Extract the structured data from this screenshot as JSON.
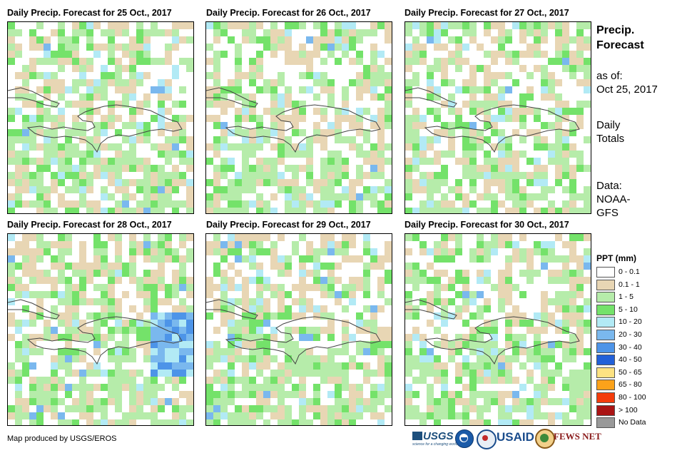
{
  "panels": [
    {
      "title": "Daily Precip. Forecast for 25 Oct., 2017",
      "seed": 11
    },
    {
      "title": "Daily Precip. Forecast for 26 Oct., 2017",
      "seed": 23
    },
    {
      "title": "Daily Precip. Forecast for 27 Oct., 2017",
      "seed": 37
    },
    {
      "title": "Daily Precip. Forecast for 28 Oct., 2017",
      "seed": 41
    },
    {
      "title": "Daily Precip. Forecast for 29 Oct., 2017",
      "seed": 53
    },
    {
      "title": "Daily Precip. Forecast for 30 Oct., 2017",
      "seed": 67
    }
  ],
  "sidebar": {
    "title_line1": "Precip.",
    "title_line2": "Forecast",
    "asof_label": "as of:",
    "asof_date": "Oct 25, 2017",
    "totals_line1": "Daily",
    "totals_line2": "Totals",
    "data_line1": "Data:",
    "data_line2": "NOAA-",
    "data_line3": "GFS"
  },
  "legend": {
    "title": "PPT (mm)",
    "items": [
      {
        "label": "0 - 0.1",
        "color": "#ffffff"
      },
      {
        "label": "0.1 - 1",
        "color": "#e8d6b4"
      },
      {
        "label": "1 - 5",
        "color": "#b6ecaa"
      },
      {
        "label": "5 - 10",
        "color": "#74e26a"
      },
      {
        "label": "10 - 20",
        "color": "#b2eaf5"
      },
      {
        "label": "20 - 30",
        "color": "#7ab8ee"
      },
      {
        "label": "30 - 40",
        "color": "#4d94e8"
      },
      {
        "label": "40 - 50",
        "color": "#2260d8"
      },
      {
        "label": "50 - 65",
        "color": "#fde282"
      },
      {
        "label": "65 - 80",
        "color": "#fba21a"
      },
      {
        "label": "80 - 100",
        "color": "#f43c0c"
      },
      {
        "label": "> 100",
        "color": "#aa1414"
      },
      {
        "label": "No Data",
        "color": "#999999"
      }
    ]
  },
  "credit": "Map produced by USGS/EROS",
  "logos": {
    "usgs": "USGS",
    "usaid": "USAID",
    "fewsnet": "FEWS NET",
    "usgs_tagline": "science for a changing world"
  }
}
